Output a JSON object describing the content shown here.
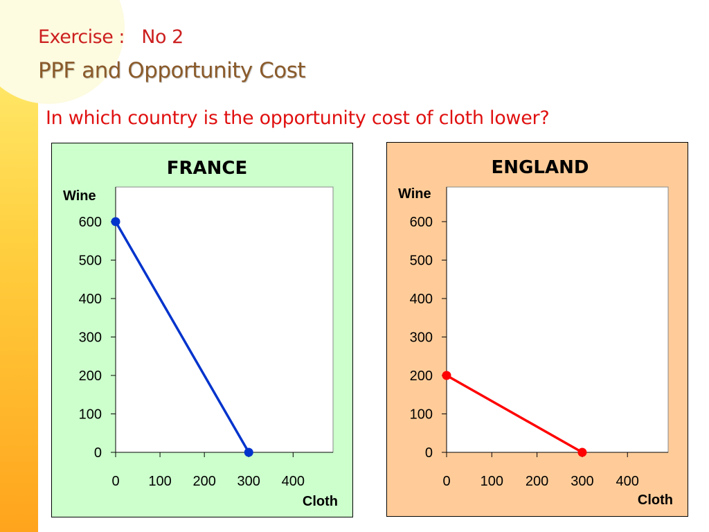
{
  "slide": {
    "title_line1": "Exercise :   No 2",
    "title_line2": "PPF and Opportunity Cost",
    "question": "In which country is the opportunity cost of cloth lower?"
  },
  "colors": {
    "title_red": "#cc1f1f",
    "title_brown": "#8a5a2a",
    "question_red": "#e01010",
    "france_bg": "#ccffcc",
    "england_bg": "#ffcc99",
    "france_line": "#0033cc",
    "england_line": "#ff0000"
  },
  "chart_data": [
    {
      "type": "line",
      "title": "FRANCE",
      "xlabel": "Cloth",
      "ylabel": "Wine",
      "xlim": [
        0,
        490
      ],
      "ylim": [
        0,
        690
      ],
      "x_ticks": [
        0,
        100,
        200,
        300,
        400
      ],
      "y_ticks": [
        0,
        100,
        200,
        300,
        400,
        500,
        600
      ],
      "grid": false,
      "series": [
        {
          "x": [
            0,
            300
          ],
          "y": [
            600,
            0
          ],
          "color": "#0033cc"
        }
      ]
    },
    {
      "type": "line",
      "title": "ENGLAND",
      "xlabel": "Cloth",
      "ylabel": "Wine",
      "xlim": [
        0,
        490
      ],
      "ylim": [
        0,
        690
      ],
      "x_ticks": [
        0,
        100,
        200,
        300,
        400
      ],
      "y_ticks": [
        0,
        100,
        200,
        300,
        400,
        500,
        600
      ],
      "grid": false,
      "series": [
        {
          "x": [
            0,
            300
          ],
          "y": [
            200,
            0
          ],
          "color": "#ff0000"
        }
      ]
    }
  ]
}
